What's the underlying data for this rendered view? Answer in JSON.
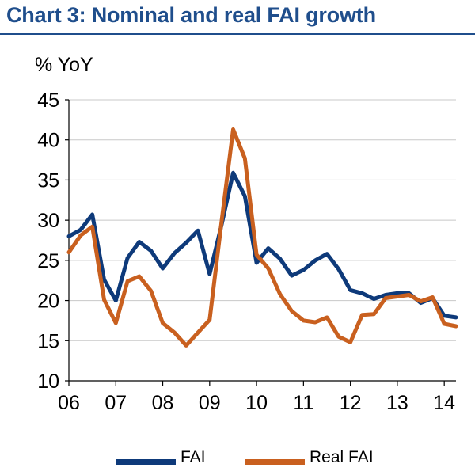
{
  "title": "Chart 3: Nominal and real FAI growth",
  "chart_data": {
    "type": "line",
    "ylabel": "% YoY",
    "ylim": [
      10,
      45
    ],
    "yticks": [
      10,
      15,
      20,
      25,
      30,
      35,
      40,
      45
    ],
    "xlim": [
      2006,
      2014.25
    ],
    "xticks": [
      {
        "label": "06",
        "value": 2006
      },
      {
        "label": "07",
        "value": 2007
      },
      {
        "label": "08",
        "value": 2008
      },
      {
        "label": "09",
        "value": 2009
      },
      {
        "label": "10",
        "value": 2010
      },
      {
        "label": "11",
        "value": 2011
      },
      {
        "label": "12",
        "value": 2012
      },
      {
        "label": "13",
        "value": 2013
      },
      {
        "label": "14",
        "value": 2014
      }
    ],
    "grid": "horizontal",
    "legend": "bottom",
    "series": [
      {
        "name": "FAI",
        "color": "#0e3a7a",
        "points": [
          [
            2006.0,
            28.0
          ],
          [
            2006.25,
            28.8
          ],
          [
            2006.5,
            30.7
          ],
          [
            2006.75,
            22.6
          ],
          [
            2007.0,
            20.0
          ],
          [
            2007.25,
            25.3
          ],
          [
            2007.5,
            27.3
          ],
          [
            2007.75,
            26.2
          ],
          [
            2008.0,
            24.0
          ],
          [
            2008.25,
            25.9
          ],
          [
            2008.5,
            27.2
          ],
          [
            2008.75,
            28.7
          ],
          [
            2009.0,
            23.3
          ],
          [
            2009.25,
            29.3
          ],
          [
            2009.5,
            35.9
          ],
          [
            2009.75,
            33.0
          ],
          [
            2010.0,
            24.7
          ],
          [
            2010.25,
            26.5
          ],
          [
            2010.5,
            25.2
          ],
          [
            2010.75,
            23.1
          ],
          [
            2011.0,
            23.8
          ],
          [
            2011.25,
            25.0
          ],
          [
            2011.5,
            25.8
          ],
          [
            2011.75,
            23.9
          ],
          [
            2012.0,
            21.3
          ],
          [
            2012.25,
            20.9
          ],
          [
            2012.5,
            20.2
          ],
          [
            2012.75,
            20.7
          ],
          [
            2013.0,
            20.9
          ],
          [
            2013.25,
            20.9
          ],
          [
            2013.5,
            19.7
          ],
          [
            2013.75,
            20.3
          ],
          [
            2014.0,
            18.1
          ],
          [
            2014.25,
            17.9
          ]
        ]
      },
      {
        "name": "Real FAI",
        "color": "#c9601f",
        "points": [
          [
            2006.0,
            26.0
          ],
          [
            2006.25,
            28.1
          ],
          [
            2006.5,
            29.2
          ],
          [
            2006.75,
            20.1
          ],
          [
            2007.0,
            17.2
          ],
          [
            2007.25,
            22.4
          ],
          [
            2007.5,
            23.0
          ],
          [
            2007.75,
            21.2
          ],
          [
            2008.0,
            17.2
          ],
          [
            2008.25,
            16.0
          ],
          [
            2008.5,
            14.4
          ],
          [
            2008.75,
            16.0
          ],
          [
            2009.0,
            17.6
          ],
          [
            2009.25,
            29.6
          ],
          [
            2009.5,
            41.3
          ],
          [
            2009.75,
            37.7
          ],
          [
            2010.0,
            25.7
          ],
          [
            2010.25,
            24.0
          ],
          [
            2010.5,
            20.8
          ],
          [
            2010.75,
            18.7
          ],
          [
            2011.0,
            17.5
          ],
          [
            2011.25,
            17.3
          ],
          [
            2011.5,
            17.9
          ],
          [
            2011.75,
            15.5
          ],
          [
            2012.0,
            14.8
          ],
          [
            2012.25,
            18.2
          ],
          [
            2012.5,
            18.3
          ],
          [
            2012.75,
            20.3
          ],
          [
            2013.0,
            20.5
          ],
          [
            2013.25,
            20.7
          ],
          [
            2013.5,
            19.9
          ],
          [
            2013.75,
            20.4
          ],
          [
            2014.0,
            17.1
          ],
          [
            2014.25,
            16.8
          ]
        ]
      }
    ]
  }
}
